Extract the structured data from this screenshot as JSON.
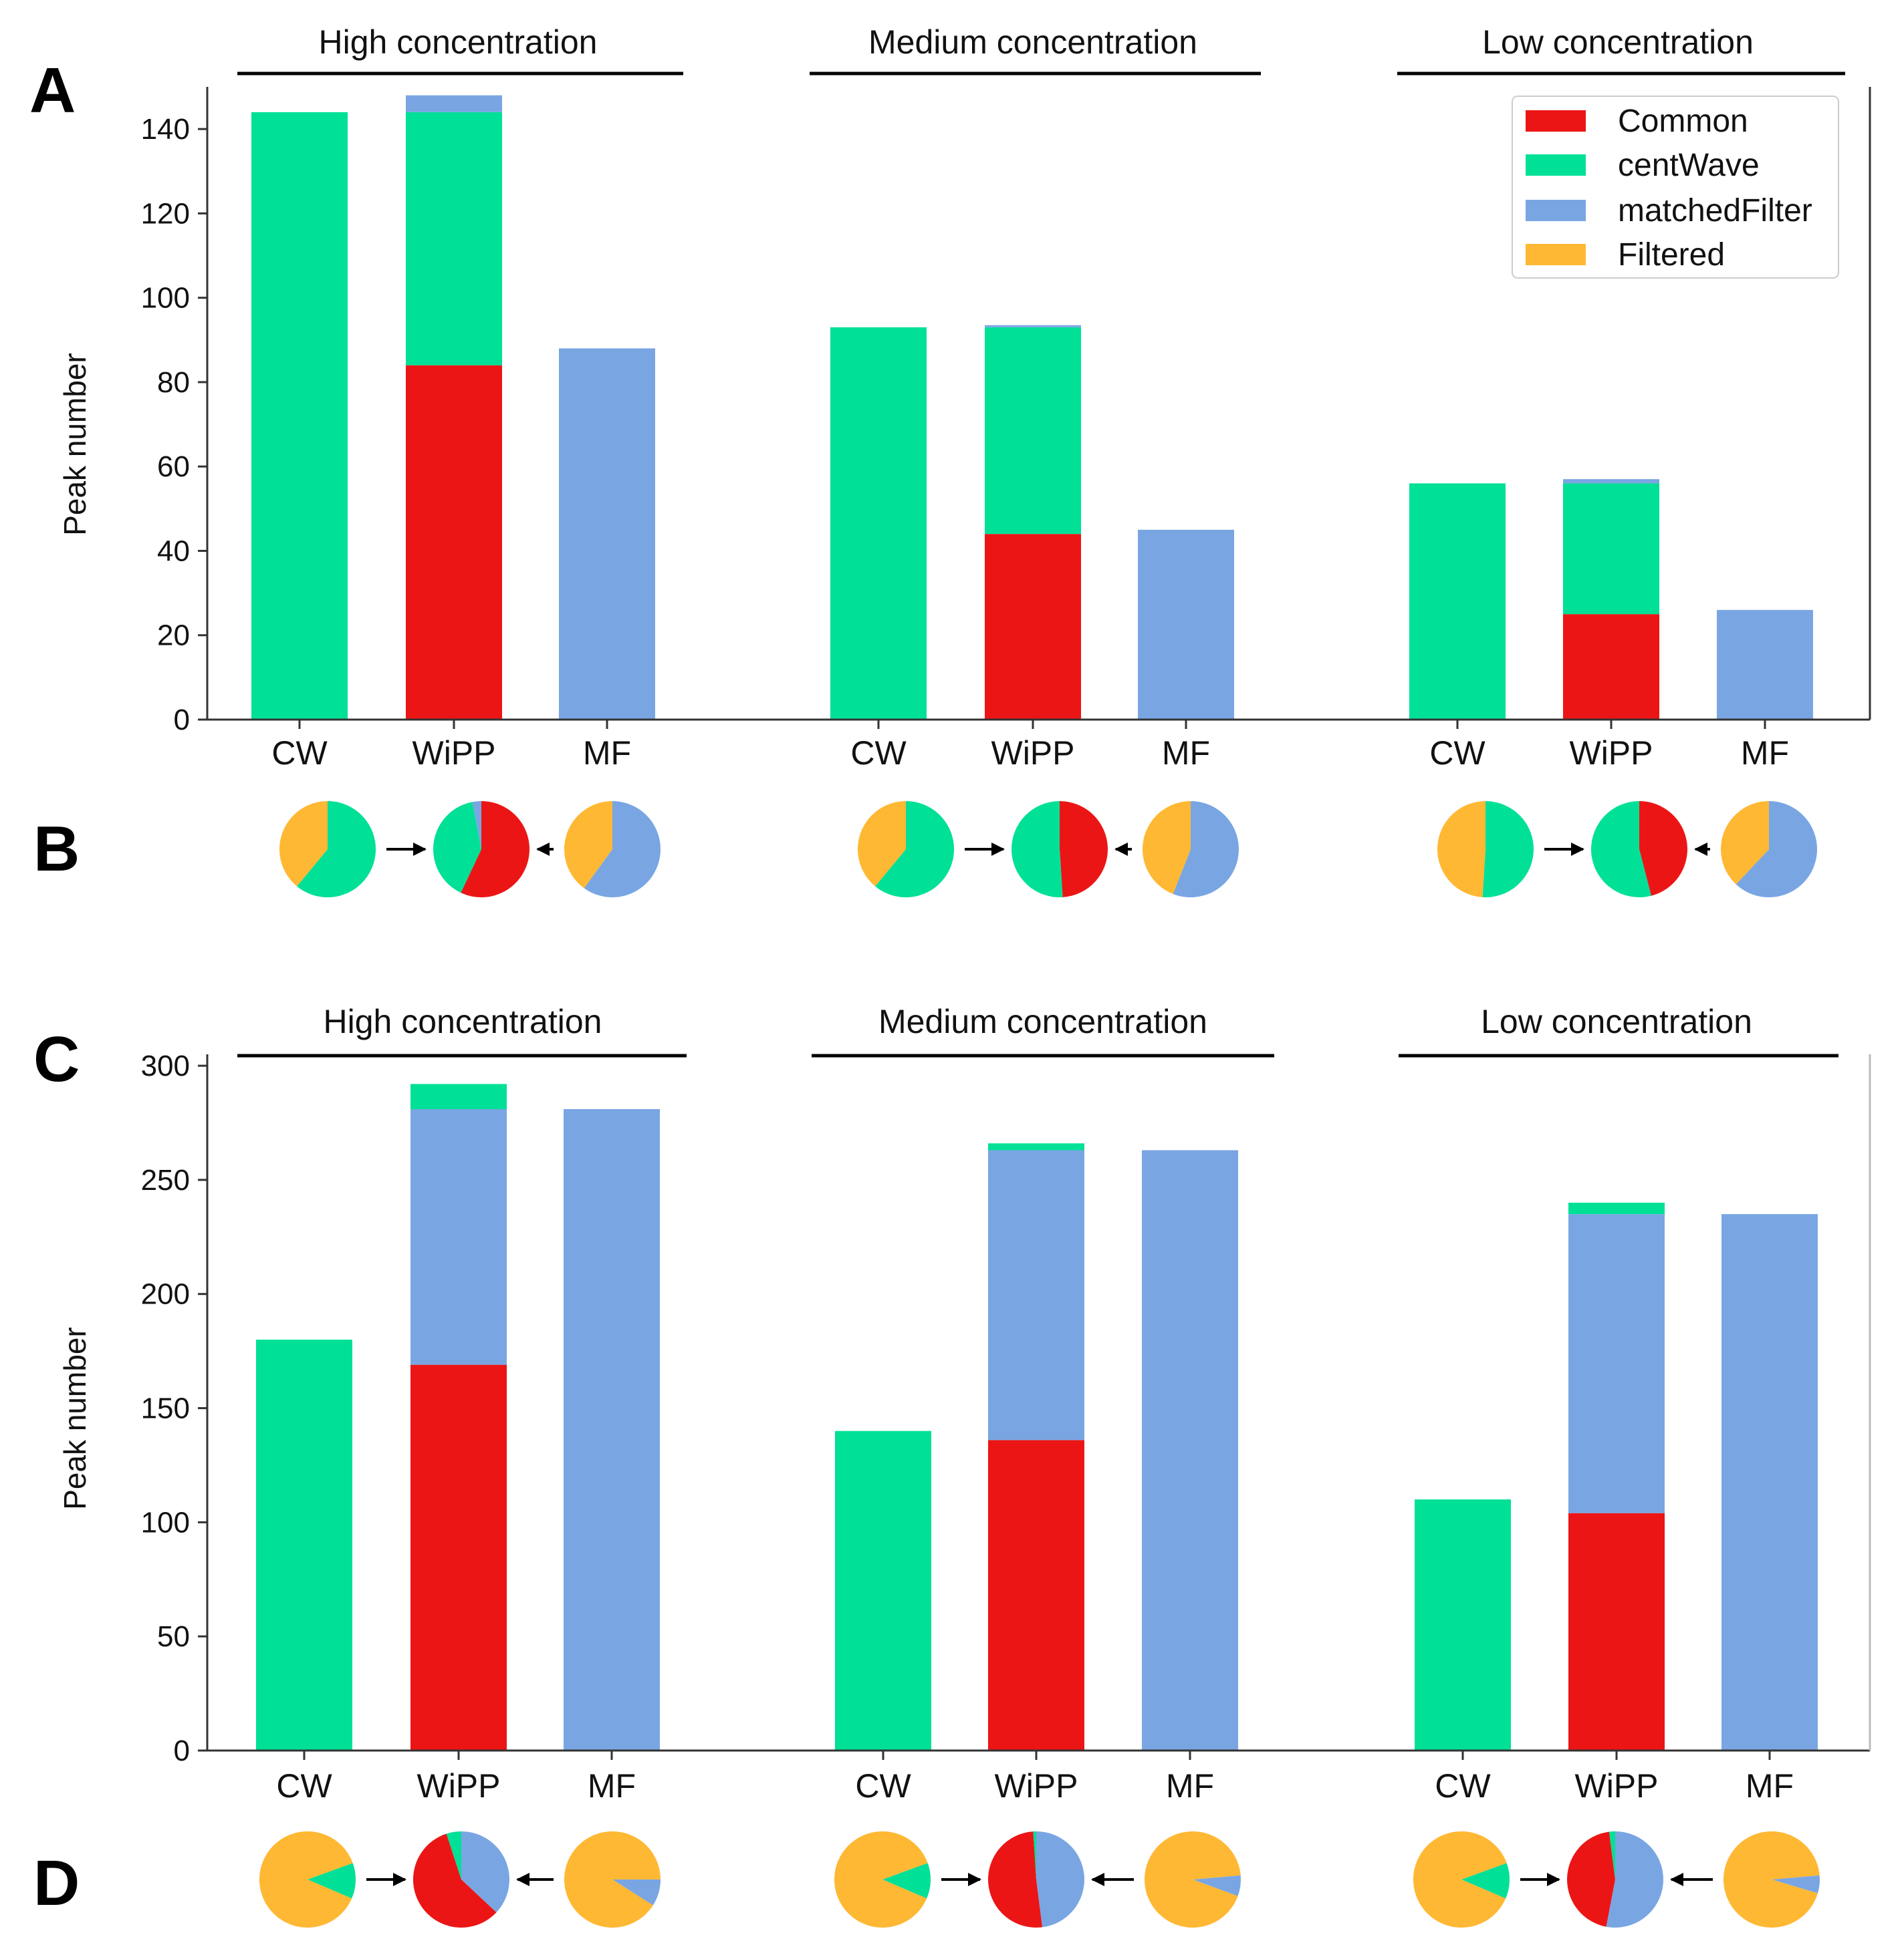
{
  "colors": {
    "Common": "#ec1515",
    "centWave": "#00e096",
    "matchedFilter": "#79a6e3",
    "Filtered": "#ffb833"
  },
  "legend": [
    "Common",
    "centWave",
    "matchedFilter",
    "Filtered"
  ],
  "panel_labels": {
    "A": "A",
    "B": "B",
    "C": "C",
    "D": "D"
  },
  "chart_data": [
    {
      "panel": "A",
      "type": "bar",
      "stacked": true,
      "ylabel": "Peak number",
      "ylim": [
        0,
        150
      ],
      "yticks": [
        0,
        20,
        40,
        60,
        80,
        100,
        120,
        140
      ],
      "legend_position": "top-right",
      "groups": [
        {
          "title": "High concentration",
          "categories": [
            "CW",
            "WiPP",
            "MF"
          ],
          "stacks": [
            [
              {
                "series": "centWave",
                "value": 144
              }
            ],
            [
              {
                "series": "Common",
                "value": 84
              },
              {
                "series": "centWave",
                "value": 60
              },
              {
                "series": "matchedFilter",
                "value": 4
              }
            ],
            [
              {
                "series": "matchedFilter",
                "value": 88
              }
            ]
          ]
        },
        {
          "title": "Medium concentration",
          "categories": [
            "CW",
            "WiPP",
            "MF"
          ],
          "stacks": [
            [
              {
                "series": "centWave",
                "value": 93
              }
            ],
            [
              {
                "series": "Common",
                "value": 44
              },
              {
                "series": "centWave",
                "value": 49
              },
              {
                "series": "matchedFilter",
                "value": 0.5
              }
            ],
            [
              {
                "series": "matchedFilter",
                "value": 45
              }
            ]
          ]
        },
        {
          "title": "Low concentration",
          "categories": [
            "CW",
            "WiPP",
            "MF"
          ],
          "stacks": [
            [
              {
                "series": "centWave",
                "value": 56
              }
            ],
            [
              {
                "series": "Common",
                "value": 25
              },
              {
                "series": "centWave",
                "value": 31
              },
              {
                "series": "matchedFilter",
                "value": 1
              }
            ],
            [
              {
                "series": "matchedFilter",
                "value": 26
              }
            ]
          ]
        }
      ]
    },
    {
      "panel": "B",
      "type": "pie",
      "groups": [
        [
          [
            {
              "series": "centWave",
              "value": 61
            },
            {
              "series": "Filtered",
              "value": 39
            }
          ],
          [
            {
              "series": "Common",
              "value": 57
            },
            {
              "series": "centWave",
              "value": 40
            },
            {
              "series": "matchedFilter",
              "value": 3
            }
          ],
          [
            {
              "series": "matchedFilter",
              "value": 60
            },
            {
              "series": "Filtered",
              "value": 40
            }
          ]
        ],
        [
          [
            {
              "series": "centWave",
              "value": 61
            },
            {
              "series": "Filtered",
              "value": 39
            }
          ],
          [
            {
              "series": "Common",
              "value": 49
            },
            {
              "series": "centWave",
              "value": 51
            }
          ],
          [
            {
              "series": "matchedFilter",
              "value": 56
            },
            {
              "series": "Filtered",
              "value": 44
            }
          ]
        ],
        [
          [
            {
              "series": "centWave",
              "value": 51
            },
            {
              "series": "Filtered",
              "value": 49
            }
          ],
          [
            {
              "series": "Common",
              "value": 46
            },
            {
              "series": "centWave",
              "value": 54
            }
          ],
          [
            {
              "series": "matchedFilter",
              "value": 62
            },
            {
              "series": "Filtered",
              "value": 38
            }
          ]
        ]
      ]
    },
    {
      "panel": "C",
      "type": "bar",
      "stacked": true,
      "ylabel": "Peak number",
      "ylim": [
        0,
        305
      ],
      "yticks": [
        0,
        50,
        100,
        150,
        200,
        250,
        300
      ],
      "groups": [
        {
          "title": "High concentration",
          "categories": [
            "CW",
            "WiPP",
            "MF"
          ],
          "stacks": [
            [
              {
                "series": "centWave",
                "value": 180
              }
            ],
            [
              {
                "series": "Common",
                "value": 169
              },
              {
                "series": "matchedFilter",
                "value": 112
              },
              {
                "series": "centWave",
                "value": 11
              }
            ],
            [
              {
                "series": "matchedFilter",
                "value": 281
              }
            ]
          ]
        },
        {
          "title": "Medium concentration",
          "categories": [
            "CW",
            "WiPP",
            "MF"
          ],
          "stacks": [
            [
              {
                "series": "centWave",
                "value": 140
              }
            ],
            [
              {
                "series": "Common",
                "value": 136
              },
              {
                "series": "matchedFilter",
                "value": 127
              },
              {
                "series": "centWave",
                "value": 3
              }
            ],
            [
              {
                "series": "matchedFilter",
                "value": 263
              }
            ]
          ]
        },
        {
          "title": "Low concentration",
          "categories": [
            "CW",
            "WiPP",
            "MF"
          ],
          "stacks": [
            [
              {
                "series": "centWave",
                "value": 110
              }
            ],
            [
              {
                "series": "Common",
                "value": 104
              },
              {
                "series": "matchedFilter",
                "value": 131
              },
              {
                "series": "centWave",
                "value": 5
              }
            ],
            [
              {
                "series": "matchedFilter",
                "value": 235
              }
            ]
          ]
        }
      ]
    },
    {
      "panel": "D",
      "type": "pie",
      "groups": [
        [
          [
            {
              "series": "centWave",
              "value": 12
            },
            {
              "series": "Filtered",
              "value": 88
            }
          ],
          [
            {
              "series": "matchedFilter",
              "value": 37
            },
            {
              "series": "Common",
              "value": 58
            },
            {
              "series": "centWave",
              "value": 5
            }
          ],
          [
            {
              "series": "matchedFilter",
              "value": 9
            },
            {
              "series": "Filtered",
              "value": 91
            }
          ]
        ],
        [
          [
            {
              "series": "centWave",
              "value": 12
            },
            {
              "series": "Filtered",
              "value": 88
            }
          ],
          [
            {
              "series": "matchedFilter",
              "value": 48
            },
            {
              "series": "Common",
              "value": 51
            },
            {
              "series": "centWave",
              "value": 1
            }
          ],
          [
            {
              "series": "matchedFilter",
              "value": 7
            },
            {
              "series": "Filtered",
              "value": 93
            }
          ]
        ],
        [
          [
            {
              "series": "centWave",
              "value": 12
            },
            {
              "series": "Filtered",
              "value": 88
            }
          ],
          [
            {
              "series": "matchedFilter",
              "value": 53
            },
            {
              "series": "Common",
              "value": 45
            },
            {
              "series": "centWave",
              "value": 2
            }
          ],
          [
            {
              "series": "matchedFilter",
              "value": 6
            },
            {
              "series": "Filtered",
              "value": 94
            }
          ]
        ]
      ]
    }
  ]
}
